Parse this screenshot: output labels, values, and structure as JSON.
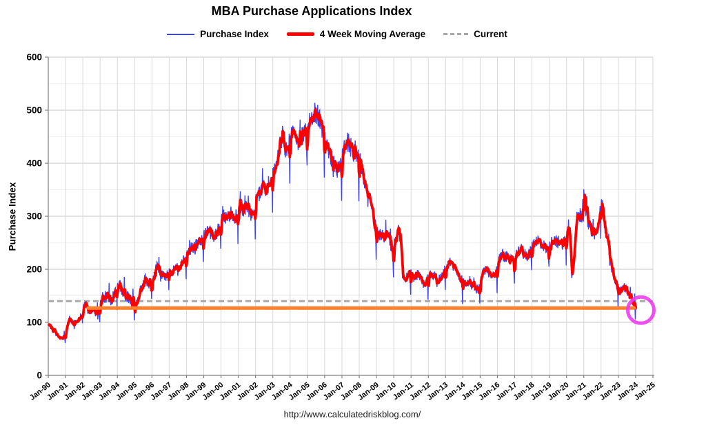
{
  "title": "MBA Purchase Applications Index",
  "footer": {
    "url": "http://www.calculatedriskblog.com/"
  },
  "legend": {
    "items": [
      {
        "label": "Purchase Index",
        "color": "#3d43ef",
        "style": "solid-thin"
      },
      {
        "label": "4 Week Moving Average",
        "color": "#ff0000",
        "style": "solid-thick"
      },
      {
        "label": "Current",
        "color": "#a8a8a8",
        "style": "dashed"
      }
    ]
  },
  "chart_data": {
    "type": "line",
    "title": "MBA Purchase Applications Index",
    "xlabel": "",
    "ylabel": "Purchase Index",
    "ylim": [
      0,
      600
    ],
    "y_tick_step": 100,
    "y_minor_step": 50,
    "x_range_years": [
      1990,
      2025
    ],
    "x_tick_labels": [
      "Jan-90",
      "Jan-91",
      "Jan-92",
      "Jan-93",
      "Jan-94",
      "Jan-95",
      "Jan-96",
      "Jan-97",
      "Jan-98",
      "Jan-99",
      "Jan-00",
      "Jan-01",
      "Jan-02",
      "Jan-03",
      "Jan-04",
      "Jan-05",
      "Jan-06",
      "Jan-07",
      "Jan-08",
      "Jan-09",
      "Jan-10",
      "Jan-11",
      "Jan-12",
      "Jan-13",
      "Jan-14",
      "Jan-15",
      "Jan-16",
      "Jan-17",
      "Jan-18",
      "Jan-19",
      "Jan-20",
      "Jan-21",
      "Jan-22",
      "Jan-23",
      "Jan-24",
      "Jan-25"
    ],
    "grid": true,
    "legend_position": "top",
    "colors": {
      "purchase_index": "#3d43ef",
      "moving_average": "#ff0000",
      "current_dashed": "#a8a8a8",
      "reference_orange": "#ff7f2b",
      "highlight_circle": "#ee3cee",
      "grid_vertical": "#d8d8d8",
      "grid_major": "#c4c4c4",
      "grid_minor": "#efefef",
      "axis": "#7f7f7f"
    },
    "current_line": {
      "label": "Current",
      "value": 140,
      "dash": [
        8,
        5
      ],
      "x_start_year": 1990.0,
      "x_end_year": 2025.0
    },
    "reference_line": {
      "value": 127,
      "x_start_year": 1992.3,
      "x_end_year": 2023.92
    },
    "highlight_circle": {
      "x_year": 2024.3,
      "value": 123,
      "radius_px": 19,
      "stroke_px": 5
    },
    "series": [
      {
        "name": "Purchase Index",
        "width": 1.4,
        "anchors": [
          [
            1990,
            97
          ],
          [
            1990.15,
            90
          ],
          [
            1990.3,
            84
          ],
          [
            1990.45,
            79
          ],
          [
            1990.6,
            73
          ],
          [
            1990.75,
            69
          ],
          [
            1990.9,
            72
          ],
          [
            1991,
            80
          ],
          [
            1991.1,
            92
          ],
          [
            1991.2,
            108
          ],
          [
            1991.35,
            101
          ],
          [
            1991.5,
            97
          ],
          [
            1991.65,
            102
          ],
          [
            1991.8,
            107
          ],
          [
            1991.9,
            112
          ],
          [
            1992,
            121
          ],
          [
            1992.1,
            132
          ],
          [
            1992.2,
            136
          ],
          [
            1992.3,
            123
          ],
          [
            1992.45,
            120
          ],
          [
            1992.6,
            128
          ],
          [
            1992.7,
            120
          ],
          [
            1992.8,
            113
          ],
          [
            1992.9,
            115
          ],
          [
            1993,
            132
          ],
          [
            1993.1,
            144
          ],
          [
            1993.2,
            149
          ],
          [
            1993.3,
            146
          ],
          [
            1993.45,
            144
          ],
          [
            1993.6,
            139
          ],
          [
            1993.7,
            145
          ],
          [
            1993.8,
            152
          ],
          [
            1993.9,
            158
          ],
          [
            1994,
            166
          ],
          [
            1994.1,
            172
          ],
          [
            1994.2,
            167
          ],
          [
            1994.3,
            161
          ],
          [
            1994.45,
            152
          ],
          [
            1994.6,
            147
          ],
          [
            1994.75,
            143
          ],
          [
            1994.9,
            136
          ],
          [
            1995,
            133
          ],
          [
            1995.1,
            137
          ],
          [
            1995.25,
            148
          ],
          [
            1995.4,
            165
          ],
          [
            1995.55,
            178
          ],
          [
            1995.7,
            181
          ],
          [
            1995.85,
            170
          ],
          [
            1996,
            176
          ],
          [
            1996.1,
            186
          ],
          [
            1996.25,
            201
          ],
          [
            1996.35,
            205
          ],
          [
            1996.5,
            193
          ],
          [
            1996.65,
            189
          ],
          [
            1996.8,
            187
          ],
          [
            1996.9,
            190
          ],
          [
            1997,
            192
          ],
          [
            1997.15,
            196
          ],
          [
            1997.3,
            199
          ],
          [
            1997.45,
            202
          ],
          [
            1997.6,
            205
          ],
          [
            1997.75,
            209
          ],
          [
            1997.9,
            215
          ],
          [
            1998,
            224
          ],
          [
            1998.15,
            236
          ],
          [
            1998.3,
            241
          ],
          [
            1998.45,
            243
          ],
          [
            1998.6,
            247
          ],
          [
            1998.75,
            251
          ],
          [
            1998.9,
            256
          ],
          [
            1999,
            261
          ],
          [
            1999.15,
            269
          ],
          [
            1999.3,
            273
          ],
          [
            1999.45,
            266
          ],
          [
            1999.6,
            262
          ],
          [
            1999.75,
            269
          ],
          [
            1999.9,
            279
          ],
          [
            2000,
            291
          ],
          [
            2000.15,
            301
          ],
          [
            2000.3,
            294
          ],
          [
            2000.45,
            299
          ],
          [
            2000.6,
            304
          ],
          [
            2000.75,
            297
          ],
          [
            2000.9,
            304
          ],
          [
            2001,
            314
          ],
          [
            2001.15,
            320
          ],
          [
            2001.3,
            312
          ],
          [
            2001.45,
            317
          ],
          [
            2001.6,
            309
          ],
          [
            2001.75,
            301
          ],
          [
            2001.9,
            316
          ],
          [
            2002,
            330
          ],
          [
            2002.15,
            339
          ],
          [
            2002.3,
            347
          ],
          [
            2002.45,
            355
          ],
          [
            2002.6,
            351
          ],
          [
            2002.75,
            359
          ],
          [
            2002.9,
            367
          ],
          [
            2003,
            376
          ],
          [
            2003.15,
            391
          ],
          [
            2003.3,
            413
          ],
          [
            2003.45,
            444
          ],
          [
            2003.55,
            454
          ],
          [
            2003.7,
            422
          ],
          [
            2003.85,
            427
          ],
          [
            2004,
            445
          ],
          [
            2004.15,
            465
          ],
          [
            2004.3,
            453
          ],
          [
            2004.45,
            441
          ],
          [
            2004.6,
            448
          ],
          [
            2004.75,
            453
          ],
          [
            2004.9,
            460
          ],
          [
            2005,
            465
          ],
          [
            2005.15,
            480
          ],
          [
            2005.3,
            475
          ],
          [
            2005.45,
            490
          ],
          [
            2005.55,
            495
          ],
          [
            2005.7,
            482
          ],
          [
            2005.85,
            465
          ],
          [
            2006,
            450
          ],
          [
            2006.15,
            432
          ],
          [
            2006.3,
            417
          ],
          [
            2006.5,
            400
          ],
          [
            2006.7,
            386
          ],
          [
            2006.85,
            391
          ],
          [
            2007,
            407
          ],
          [
            2007.15,
            430
          ],
          [
            2007.3,
            440
          ],
          [
            2007.45,
            435
          ],
          [
            2007.6,
            425
          ],
          [
            2007.75,
            416
          ],
          [
            2007.9,
            421
          ],
          [
            2008,
            410
          ],
          [
            2008.15,
            391
          ],
          [
            2008.3,
            368
          ],
          [
            2008.45,
            349
          ],
          [
            2008.6,
            333
          ],
          [
            2008.75,
            313
          ],
          [
            2008.9,
            284
          ],
          [
            2009,
            273
          ],
          [
            2009.15,
            268
          ],
          [
            2009.3,
            264
          ],
          [
            2009.45,
            262
          ],
          [
            2009.6,
            268
          ],
          [
            2009.75,
            258
          ],
          [
            2009.9,
            231
          ],
          [
            2010,
            242
          ],
          [
            2010.15,
            259
          ],
          [
            2010.3,
            275
          ],
          [
            2010.4,
            252
          ],
          [
            2010.5,
            200
          ],
          [
            2010.6,
            179
          ],
          [
            2010.75,
            187
          ],
          [
            2010.9,
            197
          ],
          [
            2011,
            190
          ],
          [
            2011.15,
            184
          ],
          [
            2011.3,
            188
          ],
          [
            2011.45,
            192
          ],
          [
            2011.6,
            180
          ],
          [
            2011.75,
            172
          ],
          [
            2011.9,
            178
          ],
          [
            2012,
            186
          ],
          [
            2012.15,
            192
          ],
          [
            2012.3,
            188
          ],
          [
            2012.45,
            184
          ],
          [
            2012.6,
            180
          ],
          [
            2012.75,
            186
          ],
          [
            2012.9,
            192
          ],
          [
            2013,
            198
          ],
          [
            2013.15,
            208
          ],
          [
            2013.3,
            214
          ],
          [
            2013.45,
            206
          ],
          [
            2013.6,
            198
          ],
          [
            2013.75,
            188
          ],
          [
            2013.9,
            182
          ],
          [
            2014,
            178
          ],
          [
            2014.15,
            172
          ],
          [
            2014.3,
            176
          ],
          [
            2014.45,
            172
          ],
          [
            2014.6,
            170
          ],
          [
            2014.75,
            166
          ],
          [
            2014.9,
            160
          ],
          [
            2015,
            170
          ],
          [
            2015.15,
            192
          ],
          [
            2015.3,
            200
          ],
          [
            2015.45,
            196
          ],
          [
            2015.6,
            192
          ],
          [
            2015.75,
            188
          ],
          [
            2015.9,
            194
          ],
          [
            2016,
            208
          ],
          [
            2016.15,
            222
          ],
          [
            2016.3,
            226
          ],
          [
            2016.45,
            220
          ],
          [
            2016.6,
            226
          ],
          [
            2016.75,
            218
          ],
          [
            2016.9,
            212
          ],
          [
            2017,
            222
          ],
          [
            2017.15,
            232
          ],
          [
            2017.3,
            238
          ],
          [
            2017.45,
            234
          ],
          [
            2017.6,
            230
          ],
          [
            2017.75,
            226
          ],
          [
            2017.9,
            232
          ],
          [
            2018,
            242
          ],
          [
            2018.15,
            252
          ],
          [
            2018.3,
            256
          ],
          [
            2018.45,
            252
          ],
          [
            2018.6,
            248
          ],
          [
            2018.75,
            242
          ],
          [
            2018.9,
            236
          ],
          [
            2019,
            242
          ],
          [
            2019.15,
            252
          ],
          [
            2019.3,
            258
          ],
          [
            2019.45,
            250
          ],
          [
            2019.6,
            256
          ],
          [
            2019.75,
            248
          ],
          [
            2019.9,
            254
          ],
          [
            2020,
            263
          ],
          [
            2020.1,
            276
          ],
          [
            2020.2,
            259
          ],
          [
            2020.3,
            187
          ],
          [
            2020.4,
            216
          ],
          [
            2020.5,
            271
          ],
          [
            2020.6,
            299
          ],
          [
            2020.7,
            306
          ],
          [
            2020.8,
            295
          ],
          [
            2020.9,
            303
          ],
          [
            2021,
            345
          ],
          [
            2021.1,
            317
          ],
          [
            2021.25,
            289
          ],
          [
            2021.4,
            277
          ],
          [
            2021.55,
            265
          ],
          [
            2021.7,
            270
          ],
          [
            2021.85,
            282
          ],
          [
            2021.95,
            309
          ],
          [
            2022.05,
            313
          ],
          [
            2022.15,
            299
          ],
          [
            2022.3,
            263
          ],
          [
            2022.45,
            236
          ],
          [
            2022.6,
            206
          ],
          [
            2022.75,
            183
          ],
          [
            2022.9,
            171
          ],
          [
            2023,
            167
          ],
          [
            2023.1,
            158
          ],
          [
            2023.2,
            162
          ],
          [
            2023.35,
            167
          ],
          [
            2023.5,
            159
          ],
          [
            2023.65,
            148
          ],
          [
            2023.8,
            140
          ],
          [
            2023.9,
            135
          ],
          [
            2024,
            139
          ],
          [
            2024.04,
            130
          ]
        ]
      },
      {
        "name": "4 Week Moving Average",
        "width": 3.8,
        "derived": "4-week moving average of Purchase Index"
      }
    ],
    "render_hints": {
      "samples_per_year": 52,
      "noise_base": 3,
      "noise_scale": 0.035,
      "noise_boost_1993_1996": 1.5,
      "holiday_dip_weeks": [
        50,
        51
      ],
      "seed": 987654321
    }
  }
}
